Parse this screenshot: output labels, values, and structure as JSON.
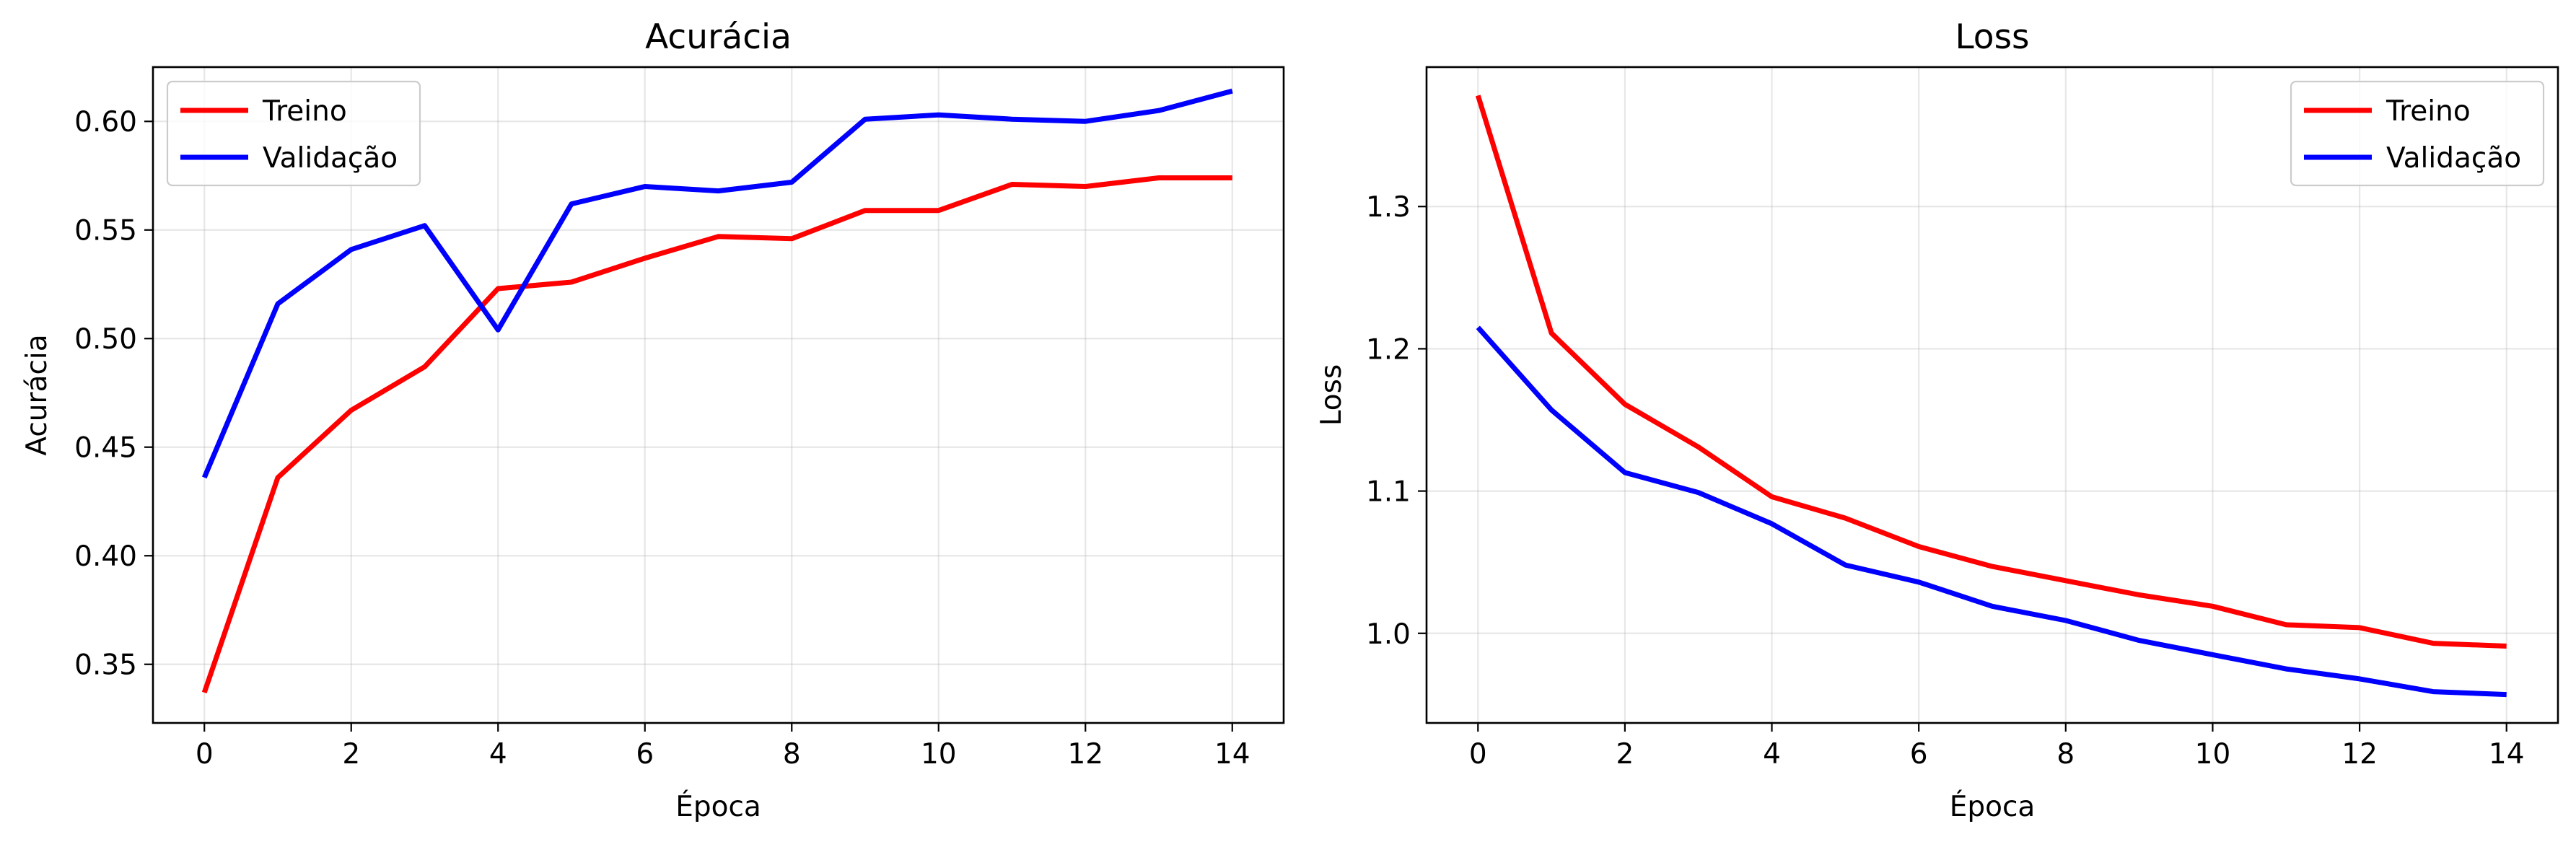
{
  "chart_data": [
    {
      "type": "line",
      "title": "Acurácia",
      "xlabel": "Época",
      "ylabel": "Acurácia",
      "x": [
        0,
        1,
        2,
        3,
        4,
        5,
        6,
        7,
        8,
        9,
        10,
        11,
        12,
        13,
        14
      ],
      "xlim": [
        -0.7,
        14.7
      ],
      "ylim": [
        0.323,
        0.625
      ],
      "xticks": [
        0,
        2,
        4,
        6,
        8,
        10,
        12,
        14
      ],
      "xtick_labels": [
        "0",
        "2",
        "4",
        "6",
        "8",
        "10",
        "12",
        "14"
      ],
      "yticks": [
        0.35,
        0.4,
        0.45,
        0.5,
        0.55,
        0.6
      ],
      "ytick_labels": [
        "0.35",
        "0.40",
        "0.45",
        "0.50",
        "0.55",
        "0.60"
      ],
      "grid": true,
      "legend_position": "top-left",
      "series": [
        {
          "name": "Treino",
          "color": "#ff0000",
          "values": [
            0.337,
            0.436,
            0.467,
            0.487,
            0.523,
            0.526,
            0.537,
            0.547,
            0.546,
            0.559,
            0.559,
            0.571,
            0.57,
            0.574,
            0.574
          ]
        },
        {
          "name": "Validação",
          "color": "#0000ff",
          "values": [
            0.436,
            0.516,
            0.541,
            0.552,
            0.504,
            0.562,
            0.57,
            0.568,
            0.572,
            0.601,
            0.603,
            0.601,
            0.6,
            0.605,
            0.614
          ]
        }
      ]
    },
    {
      "type": "line",
      "title": "Loss",
      "xlabel": "Época",
      "ylabel": "Loss",
      "x": [
        0,
        1,
        2,
        3,
        4,
        5,
        6,
        7,
        8,
        9,
        10,
        11,
        12,
        13,
        14
      ],
      "xlim": [
        -0.7,
        14.7
      ],
      "ylim": [
        0.937,
        1.398
      ],
      "xticks": [
        0,
        2,
        4,
        6,
        8,
        10,
        12,
        14
      ],
      "xtick_labels": [
        "0",
        "2",
        "4",
        "6",
        "8",
        "10",
        "12",
        "14"
      ],
      "yticks": [
        1.0,
        1.1,
        1.2,
        1.3
      ],
      "ytick_labels": [
        "1.0",
        "1.1",
        "1.2",
        "1.3"
      ],
      "grid": true,
      "legend_position": "top-right",
      "series": [
        {
          "name": "Treino",
          "color": "#ff0000",
          "values": [
            1.378,
            1.211,
            1.161,
            1.131,
            1.096,
            1.081,
            1.061,
            1.047,
            1.037,
            1.027,
            1.019,
            1.006,
            1.004,
            0.993,
            0.991
          ]
        },
        {
          "name": "Validação",
          "color": "#0000ff",
          "values": [
            1.215,
            1.157,
            1.113,
            1.099,
            1.077,
            1.048,
            1.036,
            1.019,
            1.009,
            0.995,
            0.985,
            0.975,
            0.968,
            0.959,
            0.957
          ]
        }
      ]
    }
  ]
}
